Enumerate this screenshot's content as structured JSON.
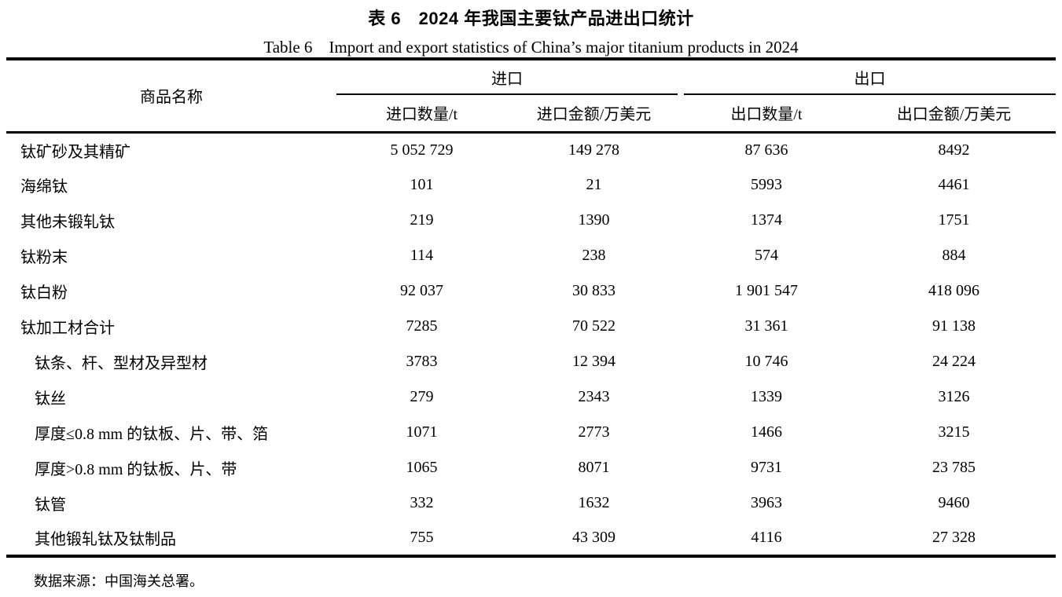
{
  "title": {
    "zh": "表 6　2024 年我国主要钛产品进出口统计",
    "en": "Table 6　Import and export statistics of China’s major titanium products in 2024"
  },
  "table": {
    "name_header": "商品名称",
    "group_import": "进口",
    "group_export": "出口",
    "sub_headers": {
      "import_qty": "进口数量/t",
      "import_value": "进口金额/万美元",
      "export_qty": "出口数量/t",
      "export_value": "出口金额/万美元"
    },
    "rows": [
      {
        "name": "钛矿砂及其精矿",
        "import_qty": "5 052 729",
        "import_value": "149 278",
        "export_qty": "87 636",
        "export_value": "8492"
      },
      {
        "name": "海绵钛",
        "import_qty": "101",
        "import_value": "21",
        "export_qty": "5993",
        "export_value": "4461"
      },
      {
        "name": "其他未锻轧钛",
        "import_qty": "219",
        "import_value": "1390",
        "export_qty": "1374",
        "export_value": "1751"
      },
      {
        "name": "钛粉末",
        "import_qty": "114",
        "import_value": "238",
        "export_qty": "574",
        "export_value": "884"
      },
      {
        "name": "钛白粉",
        "import_qty": "92 037",
        "import_value": "30 833",
        "export_qty": "1 901 547",
        "export_value": "418 096"
      },
      {
        "name": "钛加工材合计",
        "import_qty": "7285",
        "import_value": "70 522",
        "export_qty": "31 361",
        "export_value": "91 138"
      },
      {
        "name": "钛条、杆、型材及异型材",
        "import_qty": "3783",
        "import_value": "12 394",
        "export_qty": "10 746",
        "export_value": "24 224"
      },
      {
        "name": "钛丝",
        "import_qty": "279",
        "import_value": "2343",
        "export_qty": "1339",
        "export_value": "3126"
      },
      {
        "name": "厚度≤0.8 mm 的钛板、片、带、箔",
        "import_qty": "1071",
        "import_value": "2773",
        "export_qty": "1466",
        "export_value": "3215"
      },
      {
        "name": "厚度>0.8 mm 的钛板、片、带",
        "import_qty": "1065",
        "import_value": "8071",
        "export_qty": "9731",
        "export_value": "23 785"
      },
      {
        "name": "钛管",
        "import_qty": "332",
        "import_value": "1632",
        "export_qty": "3963",
        "export_value": "9460"
      },
      {
        "name": "其他锻轧钛及钛制品",
        "import_qty": "755",
        "import_value": "43 309",
        "export_qty": "4116",
        "export_value": "27 328"
      }
    ]
  },
  "footer": {
    "source": "数据来源：中国海关总署。"
  }
}
